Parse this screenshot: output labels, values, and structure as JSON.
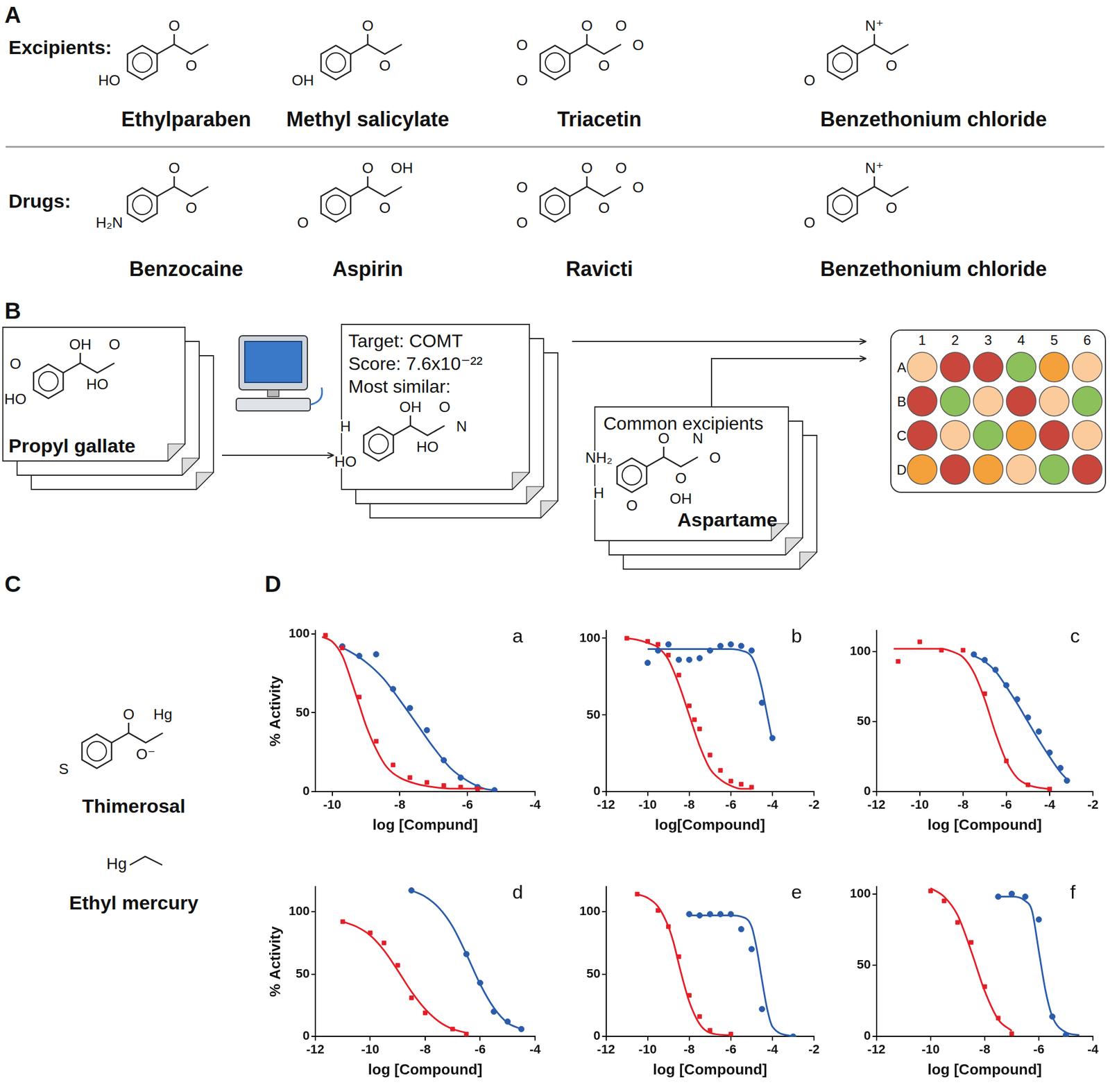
{
  "figure": {
    "panel_letters": [
      "A",
      "B",
      "C",
      "D"
    ],
    "A": {
      "rows": [
        {
          "label": "Excipients:",
          "molecules": [
            {
              "name": "Ethylparaben",
              "atoms": [
                "O",
                "O",
                "HO"
              ]
            },
            {
              "name": "Methyl salicylate",
              "atoms": [
                "O",
                "O",
                "OH"
              ]
            },
            {
              "name": "Triacetin",
              "atoms": [
                "O",
                "O",
                "O",
                "O",
                "O",
                "O"
              ]
            },
            {
              "name": "Benzethonium chloride",
              "atoms": [
                "N⁺",
                "O",
                "O"
              ]
            }
          ]
        },
        {
          "label": "Drugs:",
          "molecules": [
            {
              "name": "Benzocaine",
              "atoms": [
                "O",
                "O",
                "H₂N"
              ]
            },
            {
              "name": "Aspirin",
              "atoms": [
                "O",
                "O",
                "O",
                "OH"
              ]
            },
            {
              "name": "Ravicti",
              "atoms": [
                "O",
                "O",
                "O",
                "O",
                "O",
                "O"
              ]
            },
            {
              "name": "Benzethonium chloride",
              "atoms": [
                "N⁺",
                "O",
                "O"
              ]
            }
          ]
        }
      ]
    },
    "B": {
      "query": {
        "name": "Propyl gallate",
        "atoms": [
          "OH",
          "HO",
          "HO",
          "O",
          "O"
        ]
      },
      "result": {
        "lines": [
          "Target: COMT",
          "Score: 7.6x10⁻²²",
          "Most similar:"
        ],
        "atoms": [
          "OH",
          "HO",
          "HO",
          "O",
          "H",
          "N"
        ]
      },
      "excipients": {
        "title": "Common excipients",
        "name": "Aspartame",
        "atoms": [
          "O",
          "O",
          "H",
          "N",
          "NH₂",
          "O",
          "OH",
          "O"
        ]
      },
      "plate": {
        "columns": [
          1,
          2,
          3,
          4,
          5,
          6
        ],
        "rows": [
          "A",
          "B",
          "C",
          "D"
        ],
        "wells": [
          [
            "#fbcb9c",
            "#c9463d",
            "#c9463d",
            "#8cc05a",
            "#f4a13b",
            "#fbcb9c"
          ],
          [
            "#c9463d",
            "#8cc05a",
            "#fbcb9c",
            "#c9463d",
            "#fbcb9c",
            "#8cc05a"
          ],
          [
            "#c9463d",
            "#fbcb9c",
            "#8cc05a",
            "#f4a13b",
            "#c9463d",
            "#fbcb9c"
          ],
          [
            "#f4a13b",
            "#c9463d",
            "#f4a13b",
            "#fbcb9c",
            "#8cc05a",
            "#c9463d"
          ]
        ]
      }
    },
    "C": {
      "molecules": [
        {
          "name": "Thimerosal",
          "atoms": [
            "O",
            "O⁻",
            "S",
            "Hg"
          ]
        },
        {
          "name": "Ethyl mercury",
          "atoms": [
            "Hg"
          ]
        }
      ]
    }
  },
  "chart_data": [
    {
      "type": "scatter",
      "title": "a",
      "xlabel": "log [Compund]",
      "ylabel": "% Activity",
      "xlim": [
        -10.5,
        -4
      ],
      "xticks": [
        -10,
        -8,
        -6,
        -4
      ],
      "ylim": [
        0,
        102
      ],
      "yticks": [
        0,
        50,
        100
      ],
      "grid": false,
      "series": [
        {
          "type": "scatter",
          "marker": "square",
          "color": "#e41e26",
          "x": [
            -10.2,
            -9.7,
            -9.2,
            -8.7,
            -8.2,
            -7.7,
            -7.2,
            -6.7,
            -6.2,
            -5.7
          ],
          "values": [
            99,
            91,
            60,
            32,
            17,
            9,
            6,
            4,
            3,
            2
          ]
        },
        {
          "type": "line",
          "line_style": "solid",
          "color": "#e41e26",
          "x": [
            -10.3,
            -10,
            -9.7,
            -9.4,
            -9.2,
            -9,
            -8.7,
            -8.4,
            -8,
            -7.5,
            -7,
            -6.5,
            -6,
            -5.5
          ],
          "values": [
            98,
            95,
            86,
            68,
            55,
            42,
            27,
            16,
            9,
            5,
            3,
            2,
            2,
            2
          ]
        },
        {
          "type": "scatter",
          "marker": "circle",
          "color": "#2a5caa",
          "x": [
            -9.7,
            -9.2,
            -8.7,
            -8.2,
            -7.7,
            -7.2,
            -6.7,
            -6.2,
            -5.7,
            -5.2
          ],
          "values": [
            92,
            86,
            87,
            65,
            53,
            39,
            20,
            9,
            3,
            1
          ]
        },
        {
          "type": "line",
          "line_style": "solid",
          "color": "#2a5caa",
          "x": [
            -9.8,
            -9.5,
            -9,
            -8.5,
            -8,
            -7.5,
            -7,
            -6.5,
            -6,
            -5.5,
            -5.2
          ],
          "values": [
            92,
            89,
            82,
            72,
            58,
            43,
            28,
            15,
            7,
            2,
            1
          ]
        }
      ]
    },
    {
      "type": "scatter",
      "title": "b",
      "xlabel": "log[Compound]",
      "xlim": [
        -12,
        -2
      ],
      "xticks": [
        -12,
        -10,
        -8,
        -6,
        -4,
        -2
      ],
      "ylim": [
        0,
        105
      ],
      "yticks": [
        0,
        50,
        100
      ],
      "grid": false,
      "series": [
        {
          "type": "scatter",
          "marker": "square",
          "color": "#e41e26",
          "x": [
            -11,
            -10,
            -9.5,
            -9,
            -8.5,
            -8,
            -7.75,
            -7.5,
            -7,
            -6.5,
            -6,
            -5.5,
            -5
          ],
          "values": [
            100,
            98,
            96,
            89,
            76,
            56,
            47,
            41,
            24,
            14,
            7,
            5,
            3
          ]
        },
        {
          "type": "line",
          "line_style": "solid",
          "color": "#e41e26",
          "x": [
            -11,
            -10.5,
            -10,
            -9.5,
            -9,
            -8.5,
            -8,
            -7.5,
            -7,
            -6.5,
            -6,
            -5.5,
            -5
          ],
          "values": [
            100,
            99,
            97,
            94,
            86,
            70,
            50,
            30,
            15,
            8,
            4,
            2,
            2
          ]
        },
        {
          "type": "scatter",
          "marker": "circle",
          "color": "#2a5caa",
          "x": [
            -10,
            -9.5,
            -9,
            -8.5,
            -8,
            -7.5,
            -7,
            -6.5,
            -6,
            -5.5,
            -5,
            -4.5,
            -4
          ],
          "values": [
            84,
            92,
            96,
            86,
            86,
            87,
            92,
            95,
            96,
            95,
            92,
            58,
            35
          ]
        },
        {
          "type": "line",
          "line_style": "solid",
          "color": "#2a5caa",
          "x": [
            -10,
            -8,
            -6,
            -5.5,
            -5,
            -4.75,
            -4.5,
            -4.25,
            -4
          ],
          "values": [
            93,
            93,
            93,
            92,
            88,
            80,
            67,
            50,
            33
          ]
        }
      ]
    },
    {
      "type": "scatter",
      "title": "c",
      "xlabel": "log [Compound]",
      "xlim": [
        -12,
        -2
      ],
      "xticks": [
        -12,
        -10,
        -8,
        -6,
        -4,
        -2
      ],
      "ylim": [
        0,
        115
      ],
      "yticks": [
        0,
        50,
        100
      ],
      "grid": false,
      "series": [
        {
          "type": "scatter",
          "marker": "square",
          "color": "#e41e26",
          "x": [
            -11,
            -10,
            -9,
            -8,
            -7,
            -6,
            -5,
            -4
          ],
          "values": [
            93,
            107,
            101,
            101,
            70,
            22,
            5,
            2
          ]
        },
        {
          "type": "line",
          "line_style": "solid",
          "color": "#e41e26",
          "x": [
            -11.2,
            -10,
            -9,
            -8.5,
            -8,
            -7.5,
            -7,
            -6.5,
            -6,
            -5.5,
            -5,
            -4.5,
            -4
          ],
          "values": [
            102,
            102,
            102,
            100,
            96,
            85,
            66,
            42,
            22,
            10,
            5,
            3,
            2
          ]
        },
        {
          "type": "scatter",
          "marker": "circle",
          "color": "#2a5caa",
          "x": [
            -7.5,
            -7,
            -6.5,
            -6,
            -5.5,
            -5,
            -4.5,
            -4,
            -3.5,
            -3.2
          ],
          "values": [
            98,
            94,
            87,
            76,
            66,
            53,
            43,
            28,
            17,
            8
          ]
        },
        {
          "type": "line",
          "line_style": "solid",
          "color": "#2a5caa",
          "x": [
            -7.5,
            -7,
            -6.5,
            -6,
            -5.5,
            -5,
            -4.5,
            -4,
            -3.5,
            -3.2
          ],
          "values": [
            97,
            93,
            86,
            75,
            63,
            50,
            37,
            25,
            14,
            9
          ]
        }
      ]
    },
    {
      "type": "scatter",
      "title": "d",
      "xlabel": "log [Compound]",
      "ylabel": "% Activity",
      "xlim": [
        -12,
        -4
      ],
      "xticks": [
        -12,
        -10,
        -8,
        -6,
        -4
      ],
      "ylim": [
        0,
        120
      ],
      "yticks": [
        0,
        50,
        100
      ],
      "grid": false,
      "series": [
        {
          "type": "scatter",
          "marker": "square",
          "color": "#e41e26",
          "x": [
            -11,
            -10,
            -9.5,
            -9,
            -8.5,
            -8,
            -7,
            -6.5
          ],
          "values": [
            92,
            83,
            75,
            57,
            31,
            19,
            6,
            2
          ]
        },
        {
          "type": "line",
          "line_style": "solid",
          "color": "#e41e26",
          "x": [
            -11,
            -10.5,
            -10,
            -9.5,
            -9,
            -8.5,
            -8,
            -7.5,
            -7,
            -6.5
          ],
          "values": [
            92,
            88,
            81,
            69,
            53,
            36,
            22,
            12,
            6,
            3
          ]
        },
        {
          "type": "scatter",
          "marker": "circle",
          "color": "#2a5caa",
          "x": [
            -8.5,
            -6.5,
            -6,
            -5.5,
            -5,
            -4.5
          ],
          "values": [
            117,
            66,
            43,
            20,
            12,
            6
          ]
        },
        {
          "type": "line",
          "line_style": "solid",
          "color": "#2a5caa",
          "x": [
            -8.5,
            -8,
            -7.5,
            -7,
            -6.5,
            -6,
            -5.5,
            -5,
            -4.5
          ],
          "values": [
            117,
            112,
            103,
            88,
            66,
            42,
            23,
            11,
            6
          ]
        }
      ]
    },
    {
      "type": "scatter",
      "title": "e",
      "xlabel": "log [Compound]",
      "xlim": [
        -12,
        -2
      ],
      "xticks": [
        -12,
        -10,
        -8,
        -6,
        -4,
        -2
      ],
      "ylim": [
        0,
        120
      ],
      "yticks": [
        0,
        50,
        100
      ],
      "grid": false,
      "series": [
        {
          "type": "scatter",
          "marker": "square",
          "color": "#e41e26",
          "x": [
            -10.5,
            -9.5,
            -9,
            -8.5,
            -8,
            -7.5,
            -7,
            -6
          ],
          "values": [
            114,
            101,
            88,
            64,
            33,
            16,
            5,
            2
          ]
        },
        {
          "type": "line",
          "line_style": "solid",
          "color": "#e41e26",
          "x": [
            -10.5,
            -10,
            -9.5,
            -9,
            -8.75,
            -8.5,
            -8.25,
            -8,
            -7.5,
            -7,
            -6
          ],
          "values": [
            114,
            111,
            104,
            88,
            75,
            58,
            42,
            28,
            10,
            3,
            1
          ]
        },
        {
          "type": "scatter",
          "marker": "circle",
          "color": "#2a5caa",
          "x": [
            -8,
            -7.5,
            -7,
            -6.5,
            -6,
            -5.5,
            -5,
            -4.5,
            -3
          ],
          "values": [
            98,
            97,
            98,
            98,
            98,
            86,
            70,
            22,
            0
          ]
        },
        {
          "type": "line",
          "line_style": "solid",
          "color": "#2a5caa",
          "x": [
            -8,
            -6,
            -5.5,
            -5,
            -4.75,
            -4.5,
            -4.25,
            -4,
            -3
          ],
          "values": [
            97,
            97,
            96,
            88,
            70,
            45,
            22,
            8,
            0
          ]
        }
      ]
    },
    {
      "type": "scatter",
      "title": "f",
      "xlabel": "log [Compound]",
      "xlim": [
        -12,
        -4
      ],
      "xticks": [
        -12,
        -10,
        -8,
        -6,
        -4
      ],
      "ylim": [
        0,
        105
      ],
      "yticks": [
        0,
        50,
        100
      ],
      "grid": false,
      "series": [
        {
          "type": "scatter",
          "marker": "square",
          "color": "#e41e26",
          "x": [
            -10,
            -9.5,
            -9,
            -8.5,
            -8,
            -7.5,
            -7
          ],
          "values": [
            102,
            95,
            80,
            66,
            35,
            13,
            2
          ]
        },
        {
          "type": "line",
          "line_style": "solid",
          "color": "#e41e26",
          "x": [
            -10,
            -9.5,
            -9,
            -8.5,
            -8,
            -7.5,
            -7
          ],
          "values": [
            104,
            98,
            85,
            60,
            32,
            12,
            4
          ]
        },
        {
          "type": "scatter",
          "marker": "circle",
          "color": "#2a5caa",
          "x": [
            -7.5,
            -7,
            -6.5,
            -6,
            -5.5,
            -5
          ],
          "values": [
            98,
            100,
            98,
            82,
            14,
            1
          ]
        },
        {
          "type": "line",
          "line_style": "solid",
          "color": "#2a5caa",
          "x": [
            -7.5,
            -7,
            -6.5,
            -6.25,
            -6,
            -5.75,
            -5.5,
            -5,
            -4.5
          ],
          "values": [
            98,
            98,
            95,
            88,
            60,
            32,
            14,
            3,
            1
          ]
        }
      ]
    }
  ]
}
